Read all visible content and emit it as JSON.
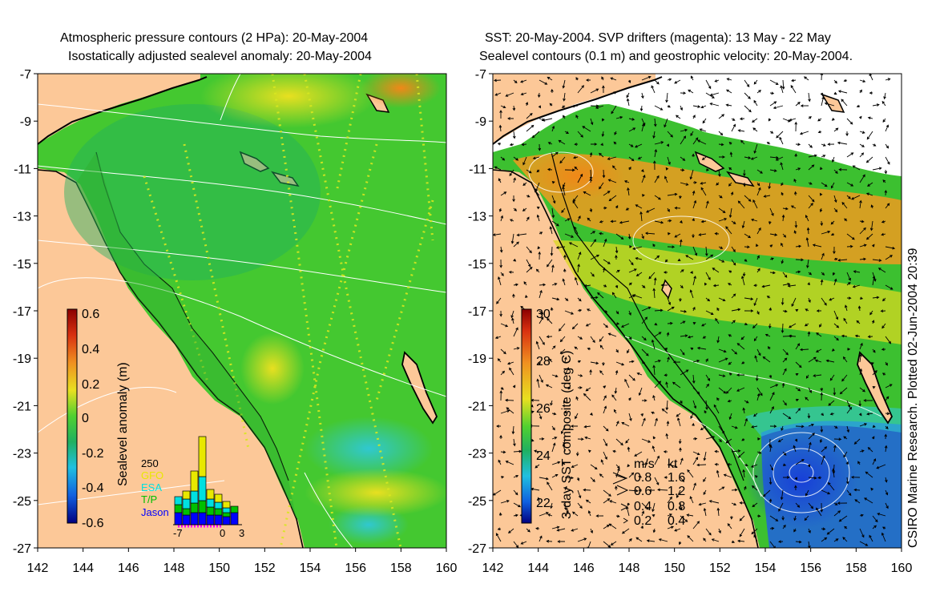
{
  "left_panel": {
    "title_line1": "Atmospheric pressure contours (2 HPa): 20-May-2004",
    "title_line2": "Isostatically adjusted sealevel anomaly: 20-May-2004",
    "colorbar": {
      "label": "Sealevel anomaly (m)",
      "ticks": [
        "0.6",
        "0.4",
        "0.2",
        "0",
        "-0.2",
        "-0.4",
        "-0.6"
      ],
      "range": [
        -0.6,
        0.6
      ]
    },
    "histogram": {
      "count_label": "250",
      "legend": [
        {
          "label": "GFO",
          "color": "#e8e800"
        },
        {
          "label": "ESA",
          "color": "#00e0e0"
        },
        {
          "label": "T/P",
          "color": "#00c000"
        },
        {
          "label": "Jason",
          "color": "#0000ff"
        }
      ],
      "x_ticks": [
        "-7",
        "0",
        "3"
      ]
    }
  },
  "right_panel": {
    "title_line1": "SST: 20-May-2004. SVP drifters (magenta): 13 May - 22 May",
    "title_line2": "Sealevel contours (0.1 m) and geostrophic velocity: 20-May-2004.",
    "colorbar": {
      "label": "3-day SST composite (deg C)",
      "ticks": [
        "30",
        "28",
        "26",
        "24",
        "22"
      ],
      "range": [
        21,
        30
      ]
    },
    "velocity_legend": {
      "header_ms": "m/s",
      "header_kt": "kt",
      "rows": [
        {
          "ms": "0.8",
          "kt": "1.6"
        },
        {
          "ms": "0.6",
          "kt": "1.2"
        },
        {
          "ms": "0.4",
          "kt": "0.8"
        },
        {
          "ms": "0.2",
          "kt": "0.4"
        }
      ]
    },
    "credit": "CSIRO Marine Research. Plotted 02-Jun-2004 20:39"
  },
  "axes": {
    "lat_ticks": [
      "-7",
      "-9",
      "-11",
      "-13",
      "-15",
      "-17",
      "-19",
      "-21",
      "-23",
      "-25",
      "-27"
    ],
    "lon_ticks": [
      "142",
      "144",
      "146",
      "148",
      "150",
      "152",
      "154",
      "156",
      "158",
      "160"
    ]
  },
  "colors": {
    "land": "#fcc898",
    "ocean_mid": "#44cc33",
    "ocean_left": "#55d030",
    "sst_warm": "#f0a020",
    "sst_cool": "#2060e0"
  }
}
